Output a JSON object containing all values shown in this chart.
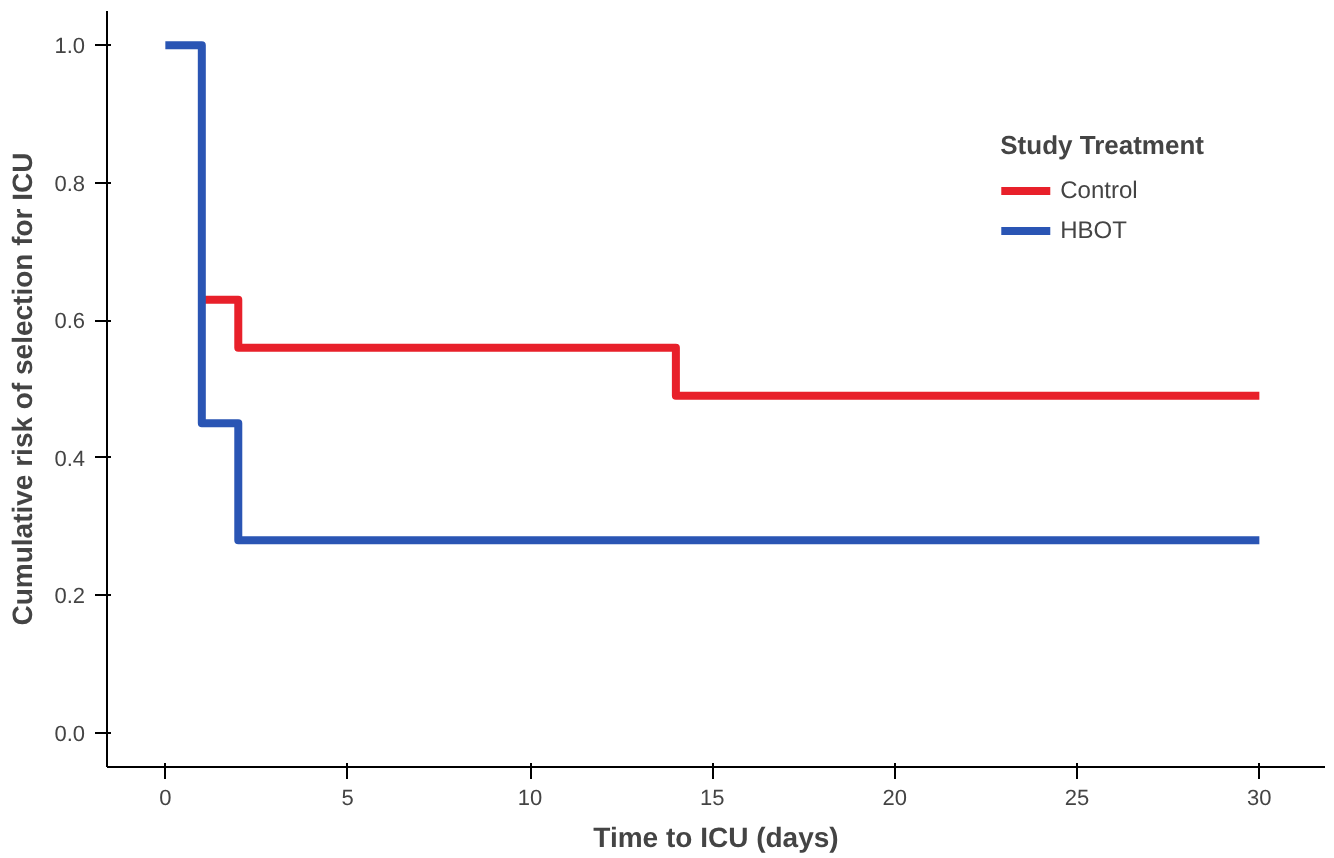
{
  "chart_data": {
    "type": "step",
    "xlabel": "Time to ICU (days)",
    "ylabel": "Cumulative risk of selection for ICU",
    "legend_title": "Study Treatment",
    "legend": "top right",
    "grid": false,
    "xlim": [
      -1.6,
      31.8
    ],
    "xticks": [
      0,
      5,
      10,
      15,
      20,
      25,
      30
    ],
    "ylim": [
      -0.05,
      1.05
    ],
    "yticks": [
      {
        "value": 0,
        "label": "0.0"
      },
      0.2,
      0.4,
      0.6,
      0.8,
      {
        "value": 1,
        "label": "1.0"
      }
    ],
    "series": [
      {
        "name": "Control",
        "color": "#e8202a",
        "x": [
          1,
          2,
          14,
          30
        ],
        "values": [
          0.63,
          0.56,
          0.49,
          0.49
        ]
      },
      {
        "name": "HBOT",
        "color": "#2a55b4",
        "x": [
          0,
          1,
          2,
          30
        ],
        "values": [
          1.0,
          0.45,
          0.28,
          0.28
        ]
      }
    ]
  }
}
